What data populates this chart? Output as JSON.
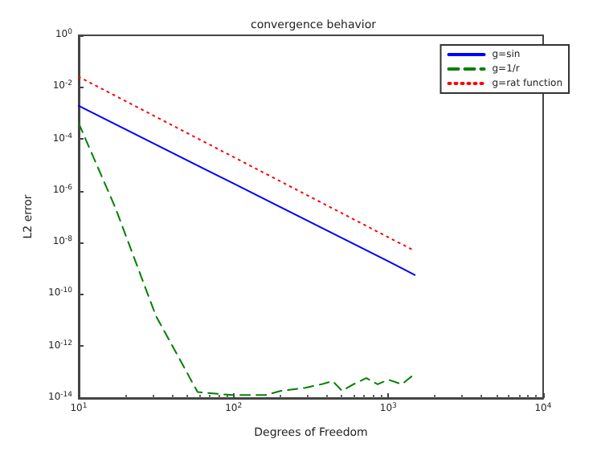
{
  "chart_data": {
    "type": "line",
    "title": "convergence behavior",
    "xlabel": "Degrees of Freedom",
    "ylabel": "L2 error",
    "log": "xy",
    "grid": false,
    "legend": "top right",
    "marker": "none",
    "xlim": [
      10,
      10000
    ],
    "xticks": [
      {
        "value": 10,
        "label": "10$^{1}$"
      },
      {
        "value": 100,
        "label": "10$^{2}$"
      },
      {
        "value": 1000,
        "label": "10$^{3}$"
      },
      {
        "value": 10000,
        "label": "10$^{4}$"
      }
    ],
    "ylim": [
      1e-14,
      1
    ],
    "yticks": [
      {
        "value": 1e-14,
        "label": "10$^{-14}$"
      },
      {
        "value": 1e-12,
        "label": "10$^{-12}$"
      },
      {
        "value": 1e-10,
        "label": "10$^{-10}$"
      },
      {
        "value": 1e-08,
        "label": "10$^{-8}$"
      },
      {
        "value": 1e-06,
        "label": "10$^{-6}$"
      },
      {
        "value": 0.0001,
        "label": "10$^{-4}$"
      },
      {
        "value": 0.01,
        "label": "10$^{-2}$"
      },
      {
        "value": 1,
        "label": "10$^{0}$"
      }
    ],
    "series": [
      {
        "name": "g=sin",
        "color": "#0000ff",
        "line_style": "solid",
        "x": [
          10,
          100,
          1000,
          1480
        ],
        "values": [
          0.0019,
          1.9e-06,
          1.9e-09,
          5.6e-10
        ]
      },
      {
        "name": "g=1/r",
        "color": "#008000",
        "line_style": "dashed",
        "x": [
          10,
          17.3,
          31.5,
          58.6,
          99,
          160,
          203,
          291,
          370,
          437,
          502,
          595,
          721,
          852,
          1000,
          1222,
          1410
        ],
        "values": [
          0.0004,
          2.1e-07,
          1.5e-11,
          1.7e-14,
          1.3e-14,
          1.3e-14,
          1.9e-14,
          2.5e-14,
          3.4e-14,
          4.5e-14,
          1.9e-14,
          3.4e-14,
          5.9e-14,
          3.4e-14,
          5.1e-14,
          3.4e-14,
          6.8e-14
        ]
      },
      {
        "name": "g=rat function",
        "color": "#ff0000",
        "line_style": "dotted",
        "x": [
          10,
          100,
          1000,
          1480
        ],
        "values": [
          0.025,
          2e-05,
          1.6e-08,
          4.8e-09
        ]
      }
    ]
  }
}
